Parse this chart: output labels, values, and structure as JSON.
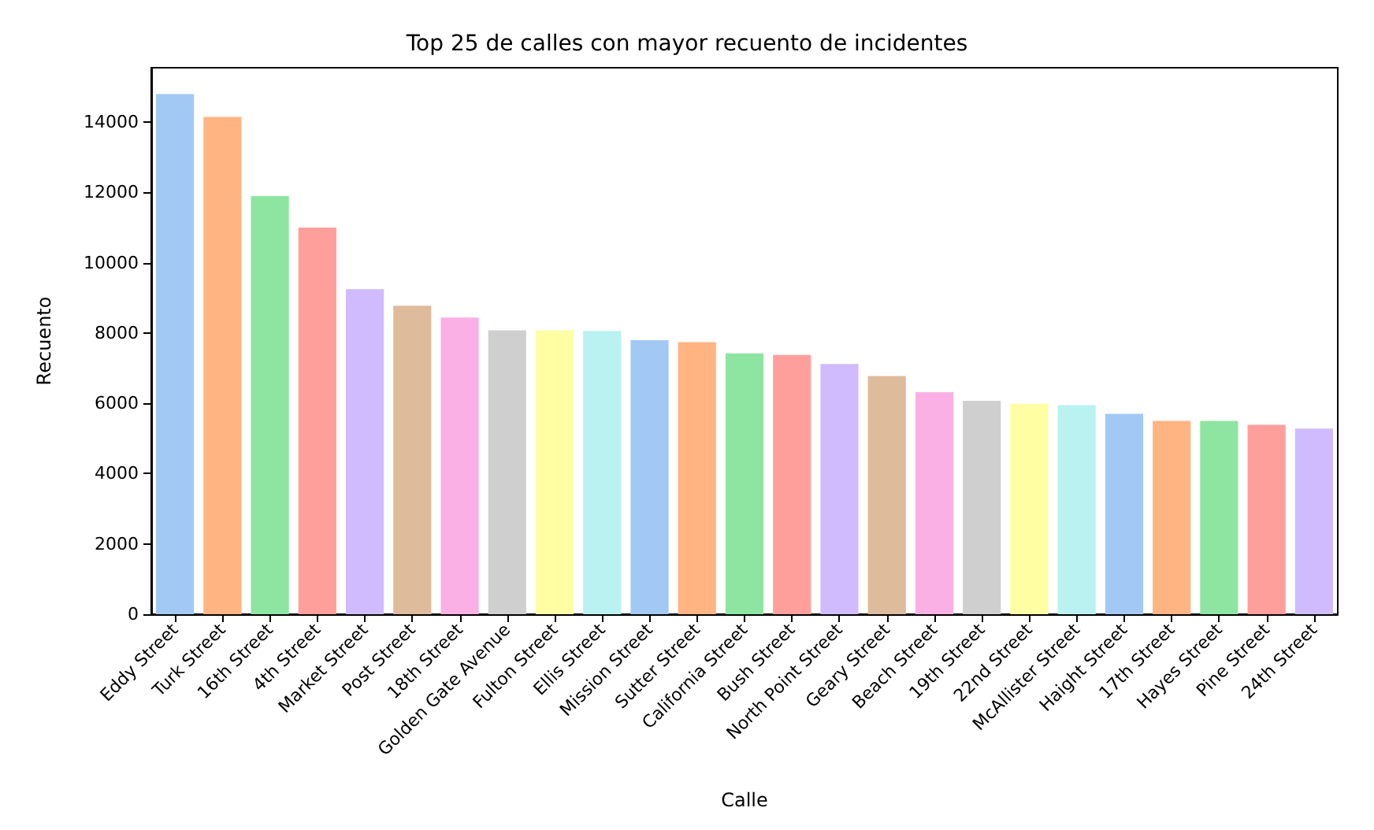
{
  "chart_data": {
    "type": "bar",
    "title": "Top 25 de calles con mayor recuento de incidentes",
    "xlabel": "Calle",
    "ylabel": "Recuento",
    "categories": [
      "Eddy Street",
      "Turk Street",
      "16th Street",
      "4th Street",
      "Market Street",
      "Post Street",
      "18th Street",
      "Golden Gate Avenue",
      "Fulton Street",
      "Ellis Street",
      "Mission Street",
      "Sutter Street",
      "California Street",
      "Bush Street",
      "North Point Street",
      "Geary Street",
      "Beach Street",
      "19th Street",
      "22nd Street",
      "McAllister Street",
      "Haight Street",
      "17th Street",
      "Hayes Street",
      "Pine Street",
      "24th Street"
    ],
    "values": [
      14800,
      14150,
      11900,
      11000,
      9250,
      8780,
      8440,
      8080,
      8080,
      8060,
      7800,
      7740,
      7420,
      7380,
      7120,
      6780,
      6320,
      6070,
      5990,
      5950,
      5700,
      5500,
      5500,
      5390,
      5280
    ],
    "colors": [
      "#a1c9f4",
      "#ffb482",
      "#8de5a1",
      "#ff9f9b",
      "#d0bbff",
      "#debb9b",
      "#fab0e4",
      "#cfcfcf",
      "#fffea3",
      "#b9f2f0",
      "#a1c9f4",
      "#ffb482",
      "#8de5a1",
      "#ff9f9b",
      "#d0bbff",
      "#debb9b",
      "#fab0e4",
      "#cfcfcf",
      "#fffea3",
      "#b9f2f0",
      "#a1c9f4",
      "#ffb482",
      "#8de5a1",
      "#ff9f9b",
      "#d0bbff"
    ],
    "ylim": [
      0,
      15550
    ],
    "yticks": [
      0,
      2000,
      4000,
      6000,
      8000,
      10000,
      12000,
      14000
    ],
    "grid": false
  }
}
